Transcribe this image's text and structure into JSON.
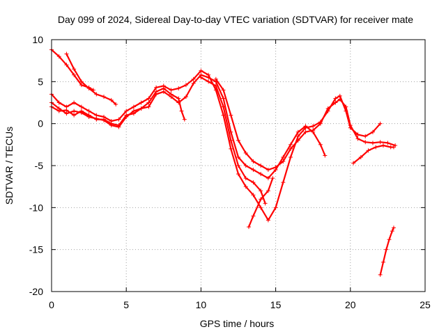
{
  "chart_data": {
    "type": "scatter",
    "title": "Day 099 of 2024, Sidereal Day-to-day VTEC variation (SDTVAR) for receiver mate",
    "xlabel": "GPS time / hours",
    "ylabel": "SDTVAR / TECUs",
    "xlim": [
      0,
      25
    ],
    "ylim": [
      -20,
      10
    ],
    "xticks": [
      "0",
      "5",
      "10",
      "15",
      "20",
      "25"
    ],
    "yticks": [
      "-20",
      "-15",
      "-10",
      "-5",
      "0",
      "5",
      "10"
    ],
    "grid": true,
    "marker": "+",
    "color": "#ff0000",
    "series": [
      {
        "points": [
          [
            0,
            8.8
          ],
          [
            0.5,
            8.0
          ],
          [
            1.0,
            7.0
          ],
          [
            1.5,
            5.8
          ],
          [
            2.0,
            4.6
          ],
          [
            2.5,
            4.3
          ],
          [
            2.8,
            4.0
          ]
        ]
      },
      {
        "points": [
          [
            1.0,
            8.3
          ],
          [
            1.5,
            6.5
          ],
          [
            2.0,
            5.0
          ],
          [
            2.5,
            4.2
          ],
          [
            3.0,
            3.5
          ],
          [
            3.5,
            3.2
          ],
          [
            4.0,
            2.8
          ],
          [
            4.3,
            2.3
          ]
        ]
      },
      {
        "points": [
          [
            0,
            2.5
          ],
          [
            0.5,
            1.8
          ],
          [
            1.0,
            1.2
          ],
          [
            1.5,
            1.5
          ],
          [
            2.0,
            1.3
          ],
          [
            2.5,
            0.8
          ],
          [
            3.0,
            0.6
          ],
          [
            3.5,
            0.4
          ],
          [
            4.0,
            -0.2
          ],
          [
            4.5,
            -0.4
          ],
          [
            5.0,
            0.8
          ],
          [
            5.5,
            1.5
          ],
          [
            6.0,
            1.8
          ],
          [
            6.5,
            2.5
          ],
          [
            7.0,
            3.8
          ],
          [
            7.5,
            4.2
          ],
          [
            8.0,
            3.5
          ],
          [
            8.5,
            3.0
          ],
          [
            8.7,
            1.5
          ],
          [
            8.9,
            0.5
          ]
        ]
      },
      {
        "points": [
          [
            0,
            3.5
          ],
          [
            0.5,
            2.5
          ],
          [
            1.0,
            2.0
          ],
          [
            1.5,
            2.5
          ],
          [
            2.0,
            2.0
          ],
          [
            2.5,
            1.5
          ],
          [
            3.0,
            1.0
          ],
          [
            3.5,
            0.8
          ],
          [
            4.0,
            0.3
          ],
          [
            4.5,
            0.5
          ],
          [
            5.0,
            1.5
          ],
          [
            5.5,
            2.0
          ],
          [
            6.0,
            2.5
          ],
          [
            6.5,
            3.0
          ],
          [
            7.0,
            4.3
          ],
          [
            7.5,
            4.5
          ],
          [
            8.0,
            4.0
          ],
          [
            8.5,
            4.2
          ],
          [
            9.0,
            4.6
          ],
          [
            9.5,
            5.3
          ],
          [
            10.0,
            6.3
          ],
          [
            10.5,
            5.8
          ],
          [
            11.0,
            4.0
          ],
          [
            11.5,
            1.0
          ],
          [
            12.0,
            -3.0
          ],
          [
            12.5,
            -6.0
          ],
          [
            13.0,
            -7.5
          ],
          [
            13.5,
            -8.5
          ],
          [
            14.0,
            -10.0
          ],
          [
            14.5,
            -11.5
          ],
          [
            15.0,
            -10.0
          ],
          [
            15.5,
            -7.0
          ],
          [
            16.0,
            -4.0
          ],
          [
            16.5,
            -1.5
          ],
          [
            17.0,
            -0.5
          ],
          [
            17.5,
            -0.3
          ],
          [
            18.0,
            0.2
          ],
          [
            18.5,
            1.5
          ],
          [
            19.0,
            3.0
          ],
          [
            19.3,
            3.3
          ],
          [
            19.7,
            1.5
          ],
          [
            20.0,
            -0.5
          ],
          [
            20.5,
            -1.3
          ],
          [
            21.0,
            -1.5
          ],
          [
            21.5,
            -1.0
          ],
          [
            22.0,
            0.0
          ]
        ]
      },
      {
        "points": [
          [
            0,
            2.0
          ],
          [
            0.5,
            1.5
          ],
          [
            1.0,
            1.6
          ],
          [
            1.5,
            1.0
          ],
          [
            2.0,
            1.5
          ],
          [
            2.5,
            1.0
          ],
          [
            3.0,
            0.5
          ],
          [
            3.5,
            0.5
          ],
          [
            4.0,
            0.0
          ],
          [
            4.5,
            -0.2
          ],
          [
            5.0,
            1.0
          ],
          [
            5.5,
            1.2
          ],
          [
            6.0,
            1.8
          ],
          [
            6.5,
            2.0
          ],
          [
            7.0,
            3.5
          ],
          [
            7.5,
            3.8
          ],
          [
            8.0,
            3.2
          ],
          [
            8.5,
            2.5
          ],
          [
            9.0,
            3.2
          ],
          [
            9.5,
            4.8
          ],
          [
            10.0,
            5.8
          ],
          [
            10.5,
            5.5
          ],
          [
            11.0,
            5.0
          ],
          [
            11.5,
            3.0
          ],
          [
            12.0,
            -1.0
          ],
          [
            12.5,
            -4.0
          ],
          [
            13.0,
            -5.0
          ],
          [
            13.5,
            -5.5
          ],
          [
            14.0,
            -6.0
          ],
          [
            14.5,
            -6.5
          ],
          [
            15.0,
            -5.5
          ],
          [
            15.5,
            -4.0
          ],
          [
            16.0,
            -2.5
          ],
          [
            16.5,
            -1.0
          ],
          [
            17.0,
            -0.3
          ],
          [
            17.5,
            -1.0
          ],
          [
            18.0,
            -2.5
          ],
          [
            18.3,
            -3.8
          ]
        ]
      },
      {
        "points": [
          [
            10.0,
            5.5
          ],
          [
            10.5,
            5.0
          ],
          [
            11.0,
            4.5
          ],
          [
            11.5,
            2.0
          ],
          [
            12.0,
            -2.0
          ],
          [
            12.5,
            -5.0
          ],
          [
            13.0,
            -6.5
          ],
          [
            13.5,
            -7.0
          ],
          [
            14.0,
            -8.0
          ],
          [
            14.3,
            -9.5
          ]
        ]
      },
      {
        "points": [
          [
            11.0,
            5.3
          ],
          [
            11.5,
            4.0
          ],
          [
            12.0,
            1.0
          ],
          [
            12.5,
            -2.0
          ],
          [
            13.0,
            -3.5
          ],
          [
            13.5,
            -4.5
          ],
          [
            14.0,
            -5.0
          ],
          [
            14.5,
            -5.5
          ],
          [
            15.0,
            -5.2
          ],
          [
            15.5,
            -4.5
          ],
          [
            16.0,
            -3.0
          ],
          [
            16.5,
            -2.0
          ],
          [
            17.0,
            -1.0
          ],
          [
            17.5,
            -0.8
          ],
          [
            18.0,
            0.0
          ],
          [
            18.5,
            1.8
          ],
          [
            19.0,
            2.5
          ],
          [
            19.3,
            2.9
          ],
          [
            19.7,
            2.0
          ],
          [
            20.0,
            -0.2
          ],
          [
            20.5,
            -1.8
          ],
          [
            21.0,
            -2.2
          ],
          [
            21.5,
            -2.3
          ],
          [
            22.0,
            -2.2
          ],
          [
            22.5,
            -2.3
          ],
          [
            23.0,
            -2.6
          ]
        ]
      },
      {
        "points": [
          [
            13.2,
            -12.3
          ],
          [
            13.5,
            -11.0
          ],
          [
            14.0,
            -9.0
          ],
          [
            14.5,
            -8.0
          ],
          [
            14.8,
            -6.5
          ]
        ]
      },
      {
        "points": [
          [
            20.2,
            -4.7
          ],
          [
            20.7,
            -4.0
          ],
          [
            21.2,
            -3.2
          ],
          [
            21.7,
            -2.8
          ],
          [
            22.2,
            -2.6
          ],
          [
            22.7,
            -2.8
          ],
          [
            22.9,
            -2.8
          ]
        ]
      },
      {
        "points": [
          [
            22.0,
            -18.0
          ],
          [
            22.2,
            -16.5
          ],
          [
            22.4,
            -15.0
          ],
          [
            22.6,
            -13.8
          ],
          [
            22.8,
            -12.8
          ],
          [
            22.9,
            -12.4
          ]
        ]
      }
    ]
  }
}
